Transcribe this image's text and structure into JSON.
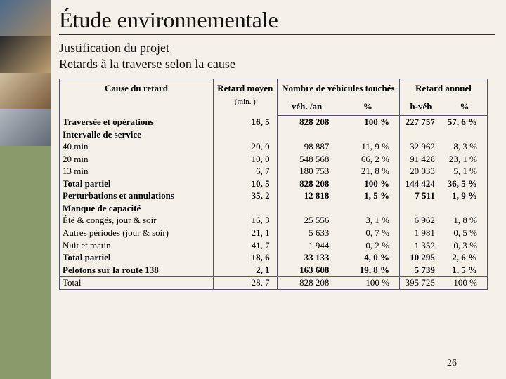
{
  "title": "Étude environnementale",
  "subtitle_underlined": "Justification du projet",
  "subtitle2": "Retards à la traverse selon la cause",
  "page_number": "26",
  "sidebar_images": [
    {
      "from": "#4a6a8a",
      "to": "#a88a6a"
    },
    {
      "from": "#2a2a2a",
      "to": "#c0a070"
    },
    {
      "from": "#d0c0a0",
      "to": "#7a5a3a"
    },
    {
      "from": "#b0b8c0",
      "to": "#606a74"
    }
  ],
  "header": {
    "cause": "Cause du retard",
    "retard_moyen": "Retard moyen",
    "retard_moyen_unit": "(min. )",
    "veh_group": "Nombre de véhicules touchés",
    "veh_an": "véh. /an",
    "veh_pct": "%",
    "annuel_group": "Retard annuel",
    "annuel_h": "h-véh",
    "annuel_pct": "%"
  },
  "rows": [
    {
      "label": "Traversée et opérations",
      "rm": "16, 5",
      "veh": "828 208",
      "vpct": "100 %",
      "h": "227 757",
      "hpct": "57, 6 %",
      "bold": true
    },
    {
      "label": "Intervalle de service",
      "bold": true,
      "blank": true
    },
    {
      "label": "40 min",
      "ind": 1,
      "rm": "20, 0",
      "veh": "98 887",
      "vpct": "11, 9 %",
      "h": "32 962",
      "hpct": "8, 3 %"
    },
    {
      "label": "20 min",
      "ind": 1,
      "rm": "10, 0",
      "veh": "548 568",
      "vpct": "66, 2 %",
      "h": "91 428",
      "hpct": "23, 1 %"
    },
    {
      "label": "13 min",
      "ind": 1,
      "rm": "6, 7",
      "veh": "180 753",
      "vpct": "21, 8 %",
      "h": "20 033",
      "hpct": "5, 1 %"
    },
    {
      "label": "Total partiel",
      "ind": 2,
      "rm": "10, 5",
      "veh": "828 208",
      "vpct": "100 %",
      "h": "144 424",
      "hpct": "36, 5 %",
      "bold": true
    },
    {
      "label": "Perturbations et annulations",
      "rm": "35, 2",
      "veh": "12 818",
      "vpct": "1, 5 %",
      "h": "7 511",
      "hpct": "1, 9 %",
      "bold": true
    },
    {
      "label": "Manque de capacité",
      "bold": true,
      "blank": true
    },
    {
      "label": "Été & congés, jour & soir",
      "ind": 1,
      "rm": "16, 3",
      "veh": "25 556",
      "vpct": "3, 1 %",
      "h": "6 962",
      "hpct": "1, 8 %"
    },
    {
      "label": "Autres périodes (jour & soir)",
      "ind": 1,
      "rm": "21, 1",
      "veh": "5 633",
      "vpct": "0, 7 %",
      "h": "1 981",
      "hpct": "0, 5 %"
    },
    {
      "label": "Nuit et matin",
      "ind": 1,
      "rm": "41, 7",
      "veh": "1 944",
      "vpct": "0, 2 %",
      "h": "1 352",
      "hpct": "0, 3 %"
    },
    {
      "label": "Total partiel",
      "ind": 2,
      "rm": "18, 6",
      "veh": "33 133",
      "vpct": "4, 0 %",
      "h": "10 295",
      "hpct": "2, 6 %",
      "bold": true
    },
    {
      "label": "Pelotons sur la route 138",
      "rm": "2, 1",
      "veh": "163 608",
      "vpct": "19, 8 %",
      "h": "5 739",
      "hpct": "1, 5 %",
      "bold": true
    }
  ],
  "total_row": {
    "label": "Total",
    "rm": "28, 7",
    "veh": "828 208",
    "vpct": "100 %",
    "h": "395 725",
    "hpct": "100 %"
  }
}
